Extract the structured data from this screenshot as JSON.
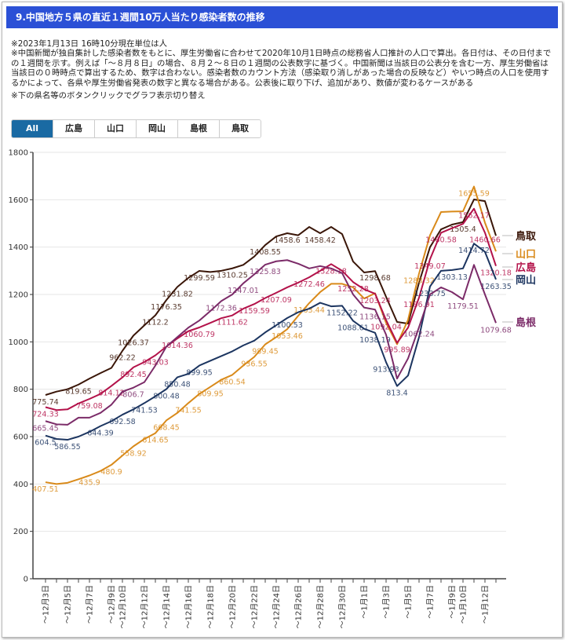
{
  "header": {
    "title": "9.中国地方５県の直近１週間10万人当たり感染者数の推移"
  },
  "notes": {
    "updated": "※2023年1月13日 16時10分現在単位は人",
    "method": "※中国新聞が独自集計した感染者数をもとに、厚生労働省に合わせて2020年10月1日時点の総務省人口推計の人口で算出。各日付は、その日付までの１週間を示す。例えば「～８月８日」の場合、８月２～８日の１週間の公表数字に基づく。中国新聞は当該日の公表分を含む一方、厚生労働省は当該日の０時時点で算出するため、数字は合わない。感染者数のカウント方法（感染取り消しがあった場合の反映など）やいつ時点の人口を使用するかによって、各県や厚生労働省発表の数字と異なる場合がある。公表後に取り下げ、追加があり、数値が変わるケースがある",
    "toggle_hint": "※下の県名等のボタンクリックでグラフ表示切り替え"
  },
  "buttons": [
    {
      "label": "All",
      "active": true
    },
    {
      "label": "広島",
      "active": false
    },
    {
      "label": "山口",
      "active": false
    },
    {
      "label": "岡山",
      "active": false
    },
    {
      "label": "島根",
      "active": false
    },
    {
      "label": "鳥取",
      "active": false
    }
  ],
  "chart_data": {
    "type": "line",
    "title": "",
    "xlabel": "",
    "ylabel": "",
    "ylim": [
      0,
      1800
    ],
    "yticks": [
      0,
      200,
      400,
      600,
      800,
      1000,
      1200,
      1400,
      1600,
      1800
    ],
    "grid": true,
    "legend": "right (line-end labels)",
    "x": [
      "〜12月3日",
      "〜12月4日",
      "〜12月5日",
      "〜12月6日",
      "〜12月7日",
      "〜12月8日",
      "〜12月9日",
      "〜12月10日",
      "〜12月11日",
      "〜12月12日",
      "〜12月13日",
      "〜12月14日",
      "〜12月15日",
      "〜12月16日",
      "〜12月17日",
      "〜12月18日",
      "〜12月19日",
      "〜12月20日",
      "〜12月21日",
      "〜12月22日",
      "〜12月23日",
      "〜12月24日",
      "〜12月25日",
      "〜12月26日",
      "〜12月27日",
      "〜12月28日",
      "〜12月29日",
      "〜12月30日",
      "〜12月31日",
      "〜1月1日",
      "〜1月2日",
      "〜1月3日",
      "〜1月4日",
      "〜1月5日",
      "〜1月6日",
      "〜1月7日",
      "〜1月8日",
      "〜1月9日",
      "〜1月10日",
      "〜1月11日",
      "〜1月12日",
      "〜1月13日"
    ],
    "x_tick_labels_shown": [
      "〜12月3日",
      "〜12月5日",
      "〜12月7日",
      "〜12月9日",
      "〜12月10日",
      "〜12月12日",
      "〜12月14日",
      "〜12月16日",
      "〜12月18日",
      "〜12月20日",
      "〜12月22日",
      "〜12月24日",
      "〜12月26日",
      "〜12月28日",
      "〜12月30日",
      "〜1月1日",
      "〜1月3日",
      "〜1月5日",
      "〜1月7日",
      "〜1月9日",
      "〜1月10日",
      "〜1月12日"
    ],
    "series": [
      {
        "name": "鳥取",
        "color": "#3a1608",
        "values": [
          775.74,
          790,
          800,
          819.65,
          845,
          868,
          890,
          962.22,
          1026.37,
          1070,
          1112.2,
          1176.35,
          1231.82,
          1270,
          1299.59,
          1295,
          1300,
          1310.25,
          1325,
          1360,
          1408.55,
          1445,
          1458.6,
          1450,
          1485,
          1458.42,
          1485,
          1455,
          1339,
          1293,
          1298.68,
          1190,
          1084,
          1077,
          1250,
          1400,
          1475,
          1495,
          1505.4,
          1601,
          1594,
          1448
        ],
        "labeled_points": [
          0,
          3,
          7,
          8,
          10,
          11,
          12,
          14,
          17,
          20,
          22,
          25,
          30,
          38
        ]
      },
      {
        "name": "山口",
        "color": "#d98a1a",
        "values": [
          407.51,
          400,
          405,
          420,
          435.9,
          455,
          480.9,
          520,
          558.92,
          590,
          614.65,
          668.45,
          700,
          741.55,
          780,
          809.95,
          840,
          860.54,
          900,
          936.55,
          989.45,
          1020,
          1053.46,
          1110,
          1163.44,
          1210,
          1245,
          1245,
          1230,
          1183,
          1205,
          1080,
          990,
          1093,
          1288.32,
          1450,
          1548,
          1550,
          1551,
          1655.59,
          1503,
          1382
        ],
        "labeled_points": [
          0,
          4,
          6,
          8,
          10,
          11,
          13,
          15,
          17,
          19,
          20,
          22,
          24,
          34,
          39
        ]
      },
      {
        "name": "広島",
        "color": "#b3124a",
        "values": [
          724.33,
          712,
          715,
          740,
          759.08,
          780,
          814.12,
          850,
          892.45,
          915,
          943.03,
          980,
          1014.36,
          1045,
          1060.79,
          1080,
          1100,
          1111.62,
          1140,
          1159.59,
          1185,
          1207.09,
          1230,
          1250,
          1272.46,
          1300,
          1328.18,
          1300,
          1252.28,
          1222,
          1203.24,
          1092.04,
          995.89,
          1060,
          1186.91,
          1349.07,
          1460.58,
          1480,
          1498,
          1562.17,
          1460.66,
          1320.18
        ],
        "labeled_points": [
          0,
          4,
          6,
          8,
          10,
          12,
          14,
          17,
          19,
          21,
          24,
          26,
          28,
          30,
          31,
          32,
          34,
          35,
          36,
          39,
          40,
          41
        ]
      },
      {
        "name": "岡山",
        "color": "#1c3560",
        "values": [
          604.5,
          590,
          586.55,
          600,
          620,
          644.39,
          665,
          692.58,
          715,
          741.53,
          770,
          800.48,
          850.48,
          865,
          899.95,
          920,
          940,
          960,
          985,
          1005,
          1040,
          1070,
          1100.53,
          1125,
          1140,
          1165,
          1150,
          1152.22,
          1088.61,
          1055,
          1038.19,
          913.93,
          813.4,
          858,
          1020,
          1233.75,
          1300,
          1303.13,
          1310,
          1414.72,
          1380,
          1263.35
        ],
        "labeled_points": [
          0,
          2,
          5,
          7,
          9,
          11,
          12,
          14,
          22,
          27,
          28,
          30,
          31,
          32,
          35,
          37,
          39,
          41
        ]
      },
      {
        "name": "島根",
        "color": "#7b2b68",
        "values": [
          665.45,
          652,
          650,
          680,
          680,
          700,
          735,
          790,
          806.7,
          830,
          900,
          980,
          1020,
          1060,
          1090,
          1130,
          1172.36,
          1200,
          1247.01,
          1285,
          1325.83,
          1340,
          1345,
          1330,
          1310,
          1320,
          1310,
          1290,
          1200,
          1145,
          1136.15,
          1030,
          845,
          930,
          1062.24,
          1200,
          1230,
          1210,
          1179.51,
          1325,
          1200,
          1079.68
        ],
        "labeled_points": [
          0,
          8,
          16,
          18,
          20,
          30,
          34,
          38,
          41
        ]
      }
    ]
  }
}
